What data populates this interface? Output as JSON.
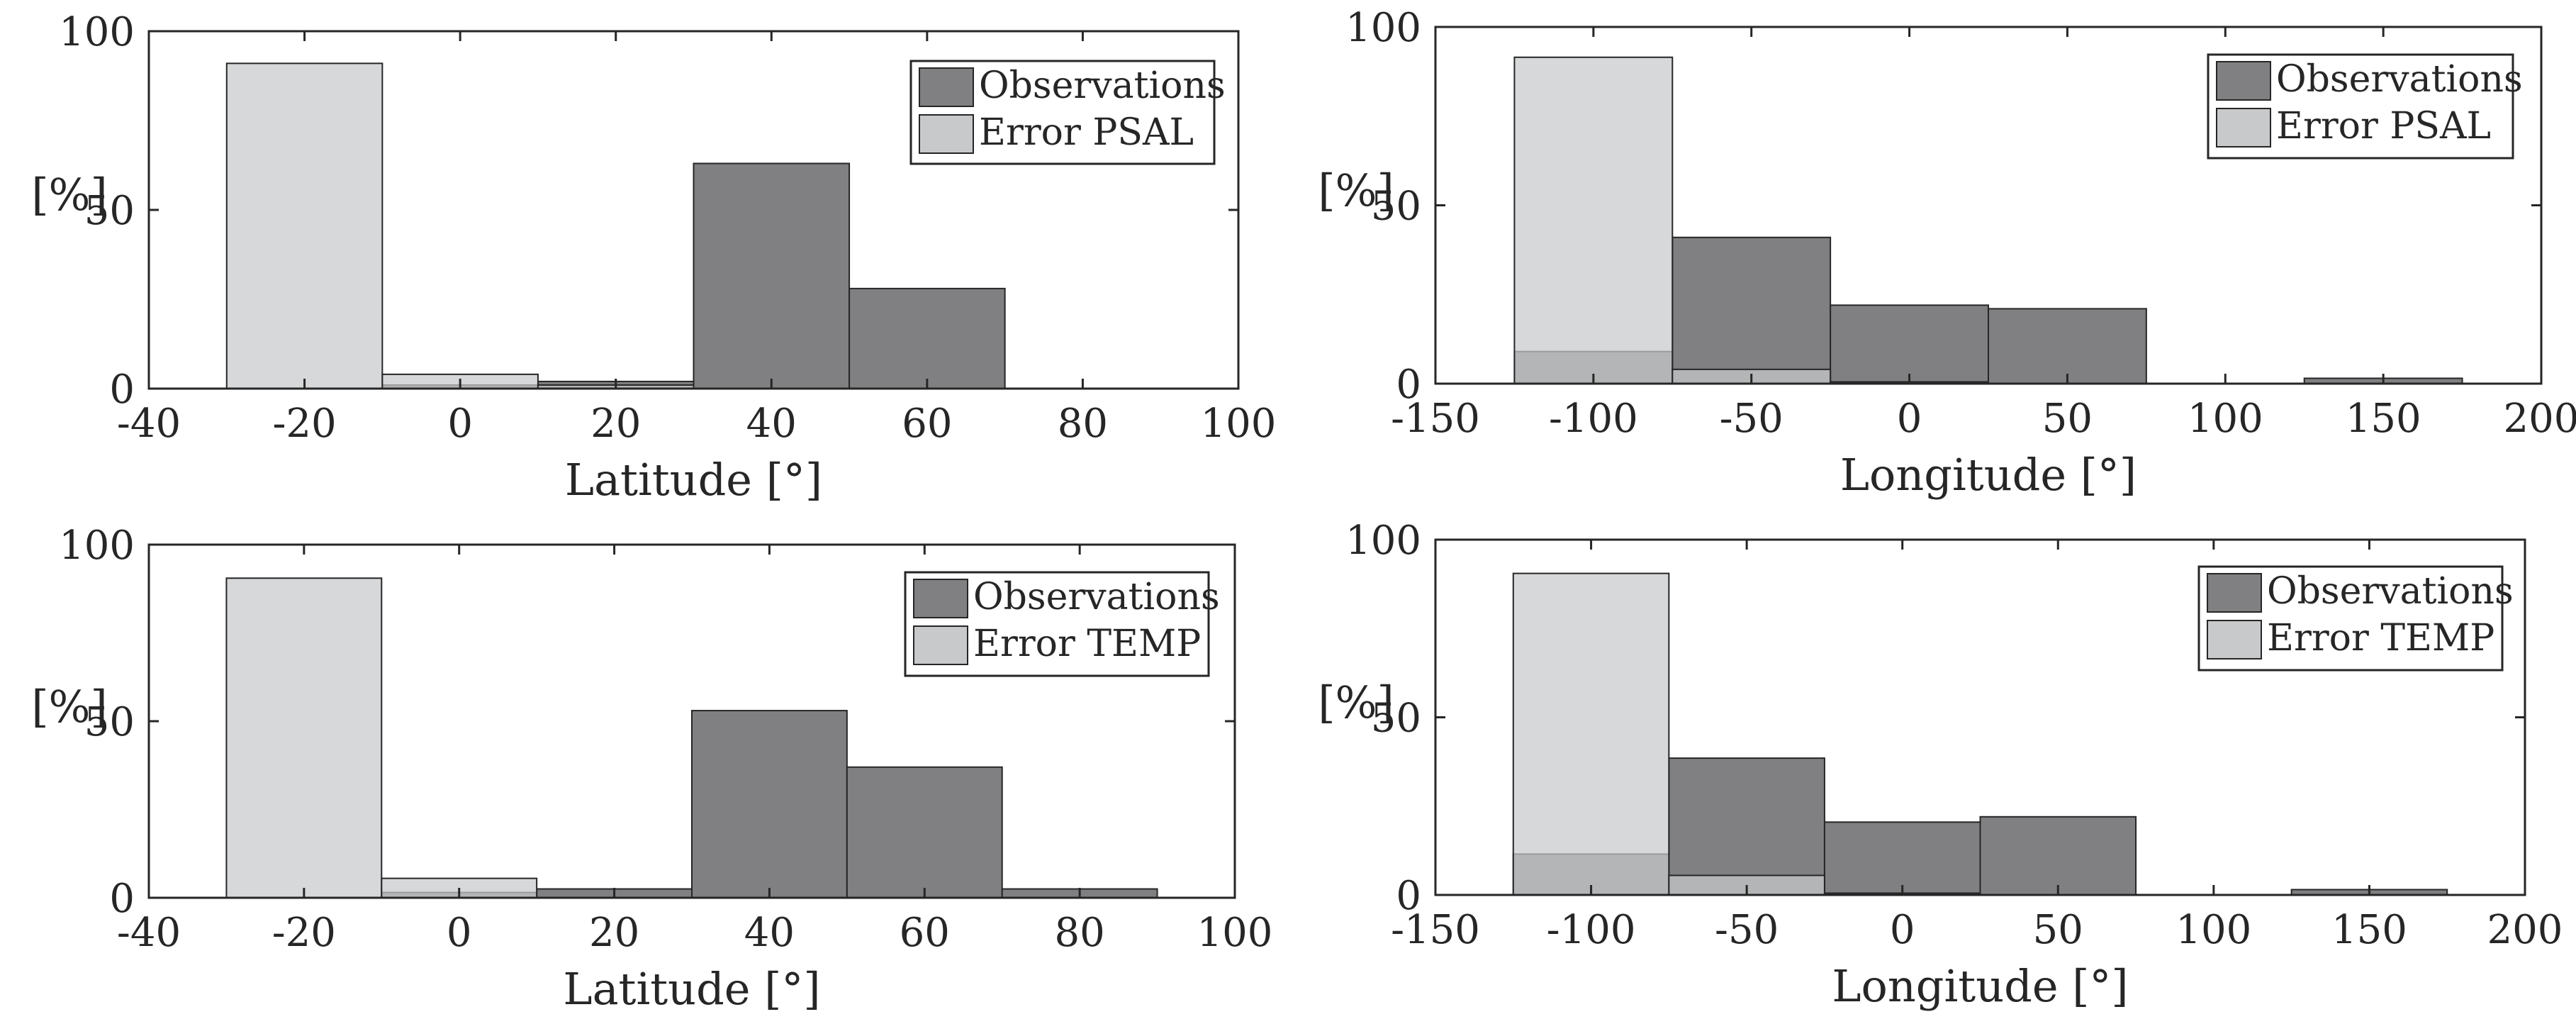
{
  "chart_data": [
    {
      "type": "bar",
      "id": "lat-psal",
      "title": "",
      "xlabel": "Latitude [°]",
      "ylabel": "[%]",
      "xlim": [
        -40,
        100
      ],
      "ylim": [
        0,
        100
      ],
      "xticks": [
        "-40",
        "-20",
        "0",
        "20",
        "40",
        "60",
        "80",
        "100"
      ],
      "yticks": [
        "0",
        "50",
        "100"
      ],
      "bin_edges": [
        -30,
        -10,
        10,
        30,
        50,
        70,
        90
      ],
      "legend_position": "top-right",
      "series": [
        {
          "name": "Observations",
          "color": "#808083",
          "values": [
            0,
            1,
            2,
            63,
            28,
            0
          ]
        },
        {
          "name": "Error PSAL",
          "color": "#c8c9cb",
          "values": [
            91,
            4,
            1,
            0,
            0,
            0
          ]
        }
      ]
    },
    {
      "type": "bar",
      "id": "lon-psal",
      "title": "",
      "xlabel": "Longitude [°]",
      "ylabel": "[%]",
      "xlim": [
        -150,
        200
      ],
      "ylim": [
        0,
        100
      ],
      "xticks": [
        "-150",
        "-100",
        "-50",
        "0",
        "50",
        "100",
        "150",
        "200"
      ],
      "yticks": [
        "0",
        "50",
        "100"
      ],
      "bin_edges": [
        -125,
        -75,
        -25,
        25,
        75,
        125,
        175
      ],
      "legend_position": "top-right",
      "series": [
        {
          "name": "Observations",
          "color": "#808083",
          "values": [
            9,
            41,
            22,
            21,
            0,
            1.5
          ]
        },
        {
          "name": "Error PSAL",
          "color": "#c8c9cb",
          "values": [
            91.5,
            4,
            0.5,
            0,
            0,
            0
          ]
        }
      ]
    },
    {
      "type": "bar",
      "id": "lat-temp",
      "title": "",
      "xlabel": "Latitude [°]",
      "ylabel": "[%]",
      "xlim": [
        -40,
        100
      ],
      "ylim": [
        0,
        100
      ],
      "xticks": [
        "-40",
        "-20",
        "0",
        "20",
        "40",
        "60",
        "80",
        "100"
      ],
      "yticks": [
        "0",
        "50",
        "100"
      ],
      "bin_edges": [
        -30,
        -10,
        10,
        30,
        50,
        70,
        90
      ],
      "legend_position": "top-right",
      "series": [
        {
          "name": "Observations",
          "color": "#808083",
          "values": [
            0,
            1.5,
            2.5,
            53,
            37,
            2.5
          ]
        },
        {
          "name": "Error TEMP",
          "color": "#c8c9cb",
          "values": [
            90.5,
            5.5,
            0,
            0,
            0,
            0
          ]
        }
      ]
    },
    {
      "type": "bar",
      "id": "lon-temp",
      "title": "",
      "xlabel": "Longitude [°]",
      "ylabel": "[%]",
      "xlim": [
        -150,
        200
      ],
      "ylim": [
        0,
        100
      ],
      "xticks": [
        "-150",
        "-100",
        "-50",
        "0",
        "50",
        "100",
        "150",
        "200"
      ],
      "yticks": [
        "0",
        "50",
        "100"
      ],
      "bin_edges": [
        -125,
        -75,
        -25,
        25,
        75,
        125,
        175
      ],
      "legend_position": "top-right",
      "series": [
        {
          "name": "Observations",
          "color": "#808083",
          "values": [
            11.5,
            38.5,
            20.5,
            22,
            0,
            1.5
          ]
        },
        {
          "name": "Error TEMP",
          "color": "#c8c9cb",
          "values": [
            90.5,
            5.5,
            0.5,
            0,
            0,
            0
          ]
        }
      ]
    }
  ]
}
